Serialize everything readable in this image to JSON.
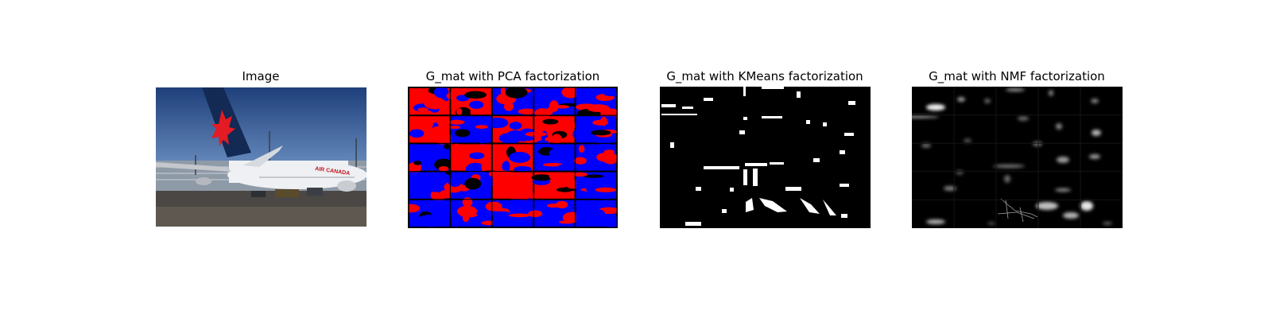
{
  "figure": {
    "panels": [
      {
        "title": "Image",
        "kind": "photo"
      },
      {
        "title": "G_mat with PCA factorization",
        "kind": "pca-grid"
      },
      {
        "title": "G_mat with KMeans factorization",
        "kind": "kmeans-mask"
      },
      {
        "title": "G_mat with NMF factorization",
        "kind": "nmf-grid"
      }
    ],
    "photo_logo_text": "AIR CANADA",
    "colors": {
      "background": "#ffffff",
      "pca_positive": "#ff0000",
      "pca_negative": "#0000ff",
      "mask_on": "#ffffff",
      "mask_off": "#000000"
    },
    "grid": {
      "rows": 5,
      "cols": 5
    }
  }
}
